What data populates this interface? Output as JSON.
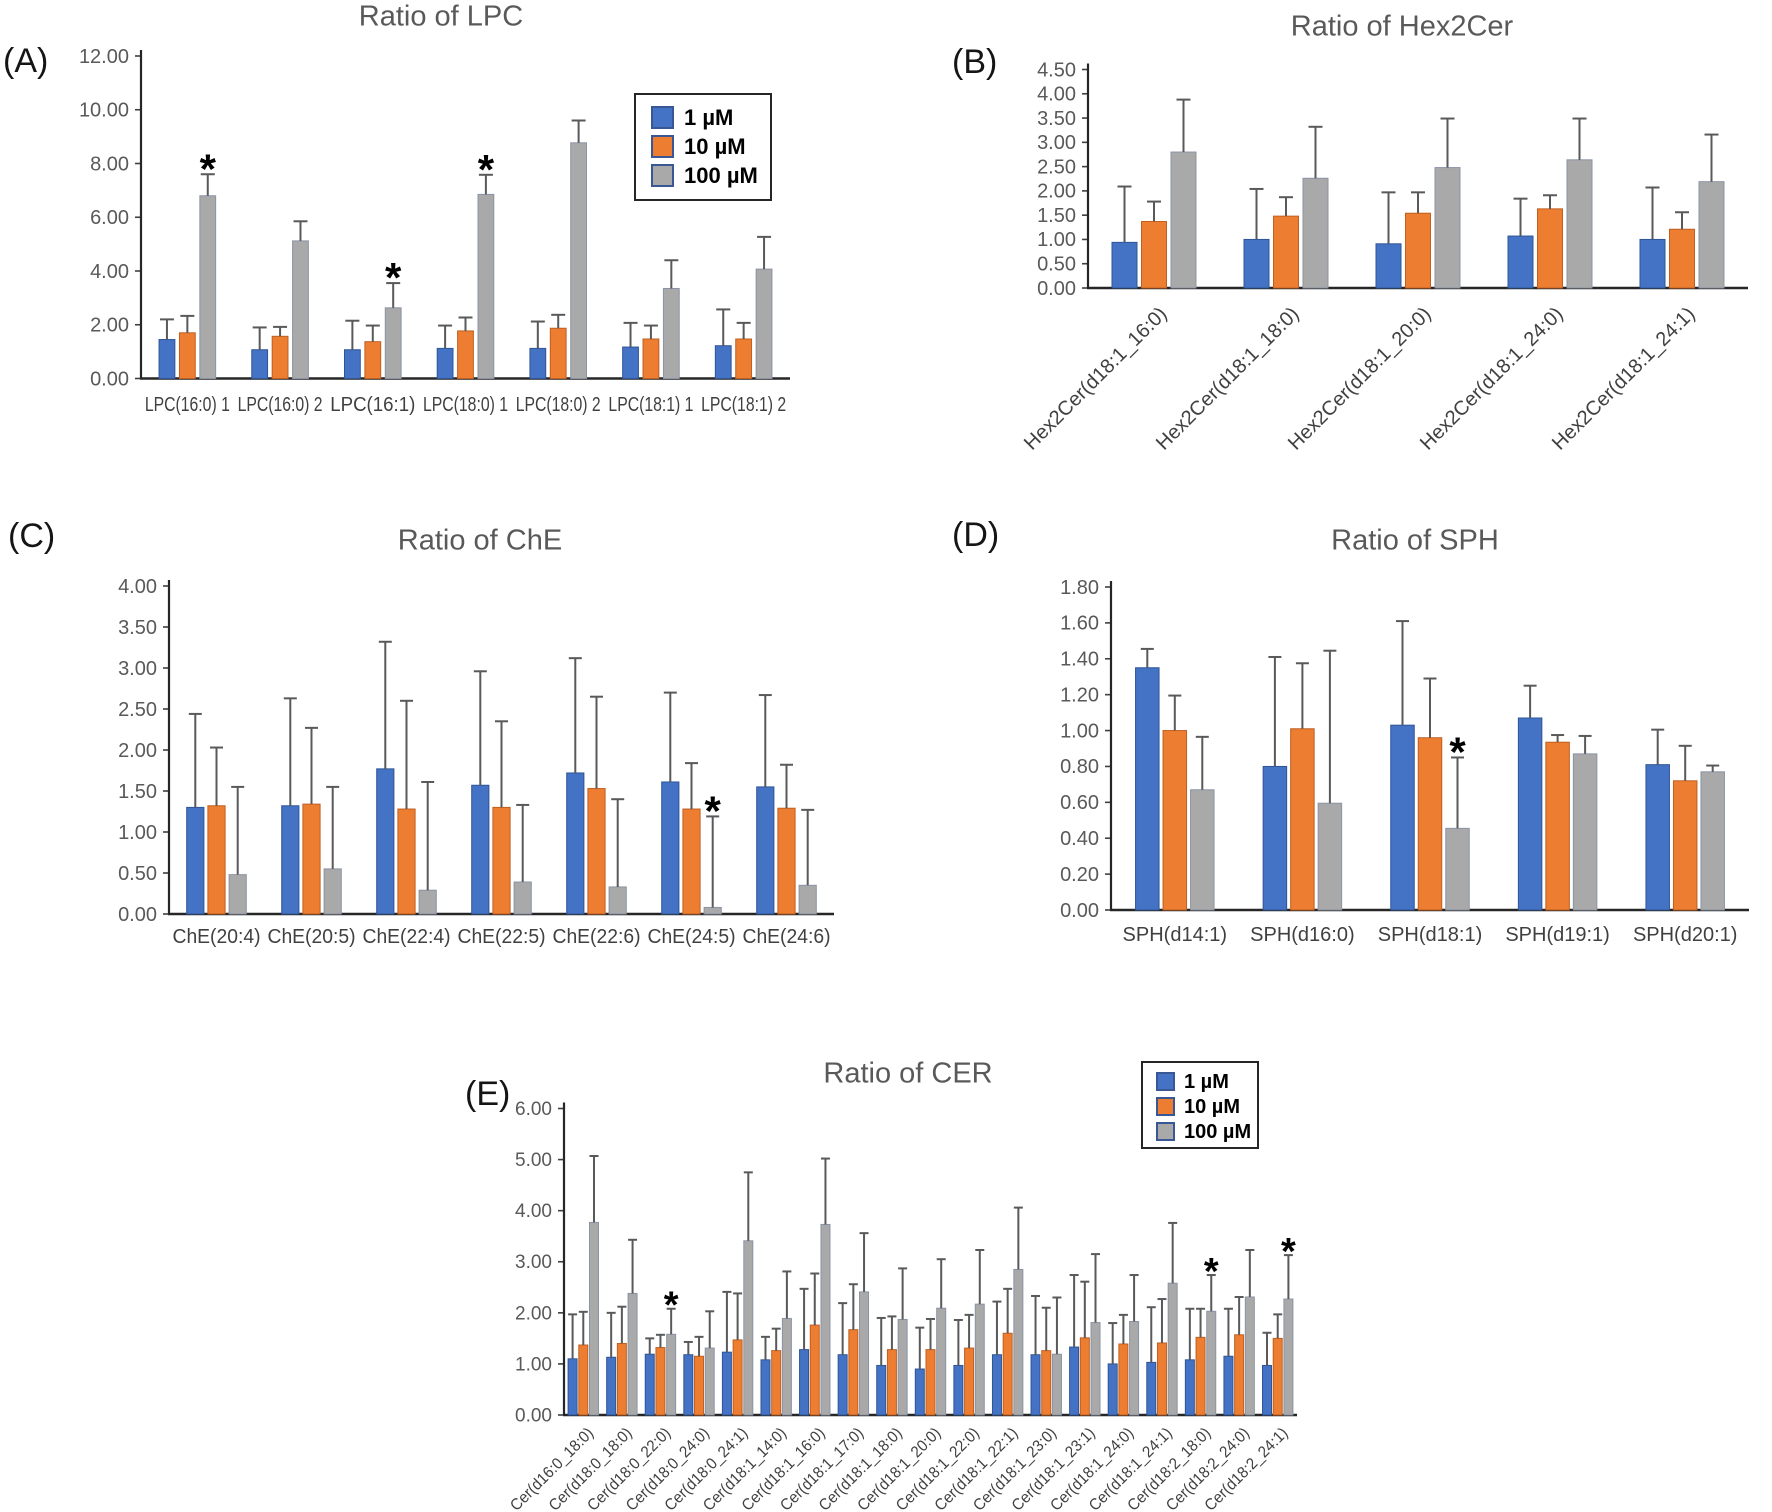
{
  "figure": {
    "background": "#ffffff",
    "significance_marker": "*"
  },
  "legend": {
    "items": [
      {
        "label": "1 µM",
        "color": "#4472C4",
        "border": "#2F5597"
      },
      {
        "label": "10 µM",
        "color": "#ED7D31",
        "border": "#C05F20"
      },
      {
        "label": "100 µM",
        "color": "#A9A9A9",
        "border": "#8A94A5"
      }
    ],
    "swatch_border": "#3A5795",
    "box_border": "#262626"
  },
  "styles": {
    "axis_color": "#262626",
    "error_bar_color": "#58595B",
    "ytick_label_color": "#595959",
    "xtick_label_color": "#404040",
    "title_color": "#595959"
  },
  "chart_data": [
    {
      "type": "bar",
      "panel_label": "(A)",
      "title": "Ratio of LPC",
      "xlabel": "",
      "ylabel": "",
      "ylim": [
        0,
        12
      ],
      "ytick_step": 2,
      "ytick_labels": [
        "0.00",
        "2.00",
        "4.00",
        "6.00",
        "8.00",
        "10.00",
        "12.00"
      ],
      "grid": false,
      "legend_position": "top-right-inset",
      "x_label_rotation": 0,
      "categories": [
        "LPC(16:0) 1",
        "LPC(16:0) 2",
        "LPC(16:1)",
        "LPC(18:0) 1",
        "LPC(18:0) 2",
        "LPC(18:1) 1",
        "LPC(18:1) 2"
      ],
      "series": [
        {
          "name": "1 µM",
          "values": [
            1.45,
            1.07,
            1.07,
            1.12,
            1.12,
            1.17,
            1.22
          ],
          "errors": [
            0.75,
            0.83,
            1.08,
            0.85,
            1.0,
            0.9,
            1.35
          ]
        },
        {
          "name": "10 µM",
          "values": [
            1.7,
            1.57,
            1.37,
            1.77,
            1.87,
            1.47,
            1.47
          ],
          "errors": [
            0.63,
            0.35,
            0.6,
            0.5,
            0.5,
            0.5,
            0.6
          ]
        },
        {
          "name": "100 µM",
          "values": [
            6.8,
            5.12,
            2.63,
            6.85,
            8.77,
            3.35,
            4.07
          ],
          "errors": [
            0.8,
            0.73,
            0.92,
            0.73,
            0.83,
            1.05,
            1.2
          ]
        }
      ],
      "significance": [
        {
          "category": "LPC(16:0) 1",
          "category_index": 0,
          "series": "100 µM",
          "series_index": 2,
          "marker": "*"
        },
        {
          "category": "LPC(16:1)",
          "category_index": 2,
          "series": "100 µM",
          "series_index": 2,
          "marker": "*"
        },
        {
          "category": "LPC(18:0) 1",
          "category_index": 3,
          "series": "100 µM",
          "series_index": 2,
          "marker": "*"
        }
      ]
    },
    {
      "type": "bar",
      "panel_label": "(B)",
      "title": "Ratio of Hex2Cer",
      "xlabel": "",
      "ylabel": "",
      "ylim": [
        0,
        4.5
      ],
      "ytick_step": 0.5,
      "ytick_labels": [
        "0.00",
        "0.50",
        "1.00",
        "1.50",
        "2.00",
        "2.50",
        "3.00",
        "3.50",
        "4.00",
        "4.50"
      ],
      "grid": false,
      "legend_position": "none",
      "x_label_rotation": 45,
      "categories": [
        "Hex2Cer(d18:1_16:0)",
        "Hex2Cer(d18:1_18:0)",
        "Hex2Cer(d18:1_20:0)",
        "Hex2Cer(d18:1_24:0)",
        "Hex2Cer(d18:1_24:1)"
      ],
      "series": [
        {
          "name": "1 µM",
          "values": [
            0.94,
            1.0,
            0.91,
            1.07,
            1.0
          ],
          "errors": [
            1.15,
            1.04,
            1.06,
            0.77,
            1.07
          ]
        },
        {
          "name": "10 µM",
          "values": [
            1.37,
            1.48,
            1.54,
            1.63,
            1.21
          ],
          "errors": [
            0.41,
            0.39,
            0.43,
            0.28,
            0.35
          ]
        },
        {
          "name": "100 µM",
          "values": [
            2.8,
            2.26,
            2.48,
            2.64,
            2.19
          ],
          "errors": [
            1.08,
            1.06,
            1.01,
            0.85,
            0.97
          ]
        }
      ],
      "significance": []
    },
    {
      "type": "bar",
      "panel_label": "(C)",
      "title": "Ratio of ChE",
      "xlabel": "",
      "ylabel": "",
      "ylim": [
        0,
        4
      ],
      "ytick_step": 0.5,
      "ytick_labels": [
        "0.00",
        "0.50",
        "1.00",
        "1.50",
        "2.00",
        "2.50",
        "3.00",
        "3.50",
        "4.00"
      ],
      "grid": false,
      "legend_position": "none",
      "x_label_rotation": 0,
      "categories": [
        "ChE(20:4)",
        "ChE(20:5)",
        "ChE(22:4)",
        "ChE(22:5)",
        "ChE(22:6)",
        "ChE(24:5)",
        "ChE(24:6)"
      ],
      "series": [
        {
          "name": "1 µM",
          "values": [
            1.3,
            1.32,
            1.77,
            1.57,
            1.72,
            1.61,
            1.55
          ],
          "errors": [
            1.14,
            1.31,
            1.55,
            1.39,
            1.4,
            1.09,
            1.12
          ]
        },
        {
          "name": "10 µM",
          "values": [
            1.32,
            1.34,
            1.28,
            1.3,
            1.53,
            1.28,
            1.29
          ],
          "errors": [
            0.71,
            0.93,
            1.32,
            1.05,
            1.12,
            0.56,
            0.53
          ]
        },
        {
          "name": "100 µM",
          "values": [
            0.48,
            0.55,
            0.29,
            0.39,
            0.33,
            0.08,
            0.35
          ],
          "errors": [
            1.07,
            1.0,
            1.32,
            0.94,
            1.07,
            1.11,
            0.92
          ]
        }
      ],
      "significance": [
        {
          "category": "ChE(24:5)",
          "category_index": 5,
          "series": "100 µM",
          "series_index": 2,
          "marker": "*"
        }
      ]
    },
    {
      "type": "bar",
      "panel_label": "(D)",
      "title": "Ratio of SPH",
      "xlabel": "",
      "ylabel": "",
      "ylim": [
        0,
        1.8
      ],
      "ytick_step": 0.2,
      "ytick_labels": [
        "0.00",
        "0.20",
        "0.40",
        "0.60",
        "0.80",
        "1.00",
        "1.20",
        "1.40",
        "1.60",
        "1.80"
      ],
      "grid": false,
      "legend_position": "none",
      "x_label_rotation": 0,
      "categories": [
        "SPH(d14:1)",
        "SPH(d16:0)",
        "SPH(d18:1)",
        "SPH(d19:1)",
        "SPH(d20:1)"
      ],
      "series": [
        {
          "name": "1 µM",
          "values": [
            1.35,
            0.8,
            1.03,
            1.07,
            0.81
          ],
          "errors": [
            0.105,
            0.61,
            0.58,
            0.18,
            0.195
          ]
        },
        {
          "name": "10 µM",
          "values": [
            1.0,
            1.01,
            0.96,
            0.935,
            0.72
          ],
          "errors": [
            0.195,
            0.365,
            0.33,
            0.04,
            0.195
          ]
        },
        {
          "name": "100 µM",
          "values": [
            0.67,
            0.595,
            0.455,
            0.87,
            0.77
          ],
          "errors": [
            0.295,
            0.85,
            0.395,
            0.1,
            0.035
          ]
        }
      ],
      "significance": [
        {
          "category": "SPH(d18:1)",
          "category_index": 2,
          "series": "100 µM",
          "series_index": 2,
          "marker": "*"
        }
      ]
    },
    {
      "type": "bar",
      "panel_label": "(E)",
      "title": "Ratio of CER",
      "xlabel": "",
      "ylabel": "",
      "ylim": [
        0,
        6
      ],
      "ytick_step": 1,
      "ytick_labels": [
        "0.00",
        "1.00",
        "2.00",
        "3.00",
        "4.00",
        "5.00",
        "6.00"
      ],
      "grid": false,
      "legend_position": "top-right-inset",
      "x_label_rotation": 45,
      "categories": [
        "Cer(d16:0_18:0)",
        "Cer(d18:0_18:0)",
        "Cer(d18:0_22:0)",
        "Cer(d18:0_24:0)",
        "Cer(d18:0_24:1)",
        "Cer(d18:1_14:0)",
        "Cer(d18:1_16:0)",
        "Cer(d18:1_17:0)",
        "Cer(d18:1_18:0)",
        "Cer(d18:1_20:0)",
        "Cer(d18:1_22:0)",
        "Cer(d18:1_22:1)",
        "Cer(d18:1_23:0)",
        "Cer(d18:1_23:1)",
        "Cer(d18:1_24:0)",
        "Cer(d18:1_24:1)",
        "Cer(d18:2_18:0)",
        "Cer(d18:2_24:0)",
        "Cer(d18:2_24:1)"
      ],
      "series": [
        {
          "name": "1 µM",
          "values": [
            1.1,
            1.13,
            1.19,
            1.18,
            1.23,
            1.08,
            1.28,
            1.18,
            0.97,
            0.9,
            0.97,
            1.18,
            1.18,
            1.33,
            1.0,
            1.03,
            1.08,
            1.15,
            0.97
          ],
          "errors": [
            0.87,
            0.87,
            0.31,
            0.25,
            1.18,
            0.45,
            1.19,
            1.01,
            0.93,
            0.81,
            0.89,
            1.04,
            1.15,
            1.41,
            0.8,
            1.08,
            1.0,
            0.93,
            0.64
          ]
        },
        {
          "name": "10 µM",
          "values": [
            1.37,
            1.4,
            1.32,
            1.15,
            1.47,
            1.26,
            1.76,
            1.67,
            1.28,
            1.28,
            1.31,
            1.6,
            1.26,
            1.51,
            1.39,
            1.41,
            1.52,
            1.57,
            1.5
          ],
          "errors": [
            0.65,
            0.72,
            0.25,
            0.38,
            0.91,
            0.43,
            1.01,
            0.89,
            0.65,
            0.6,
            0.65,
            0.87,
            0.84,
            1.1,
            0.57,
            0.86,
            0.56,
            0.74,
            0.47
          ]
        },
        {
          "name": "100 µM",
          "values": [
            3.77,
            2.38,
            1.58,
            1.31,
            3.41,
            1.89,
            3.73,
            2.41,
            1.87,
            2.09,
            2.17,
            2.85,
            1.19,
            1.81,
            1.83,
            2.58,
            2.03,
            2.31,
            2.27
          ],
          "errors": [
            1.3,
            1.05,
            0.5,
            0.72,
            1.34,
            0.92,
            1.29,
            1.15,
            1.0,
            0.96,
            1.06,
            1.21,
            1.11,
            1.34,
            0.91,
            1.18,
            0.71,
            0.92,
            0.86
          ]
        }
      ],
      "significance": [
        {
          "category": "Cer(d18:0_22:0)",
          "category_index": 2,
          "series": "100 µM",
          "series_index": 2,
          "marker": "*"
        },
        {
          "category": "Cer(d18:2_18:0)",
          "category_index": 16,
          "series": "100 µM",
          "series_index": 2,
          "marker": "*"
        },
        {
          "category": "Cer(d18:2_24:1)",
          "category_index": 18,
          "series": "100 µM",
          "series_index": 2,
          "marker": "*"
        }
      ]
    }
  ]
}
